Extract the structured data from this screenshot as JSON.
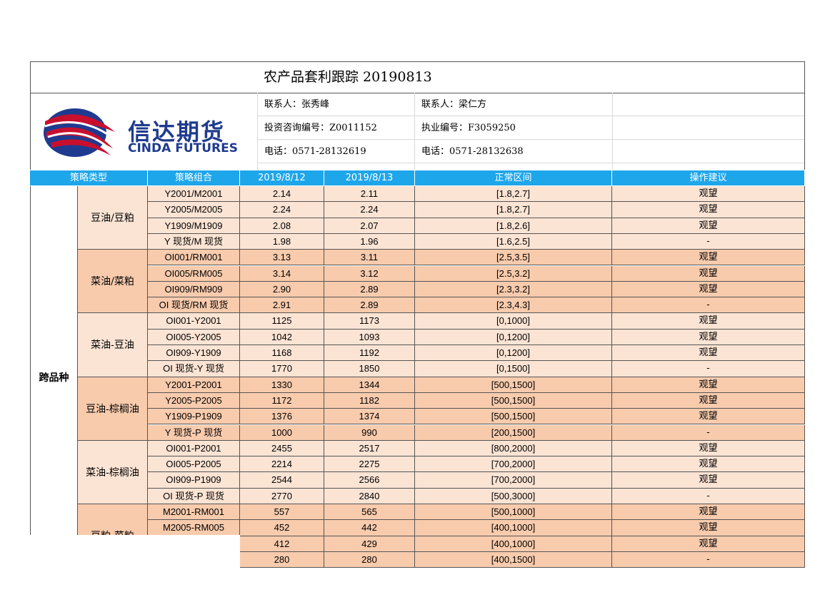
{
  "title": "农产品套利跟踪 20190813",
  "logo": {
    "cn": "信达期货",
    "en": "CINDA FUTURES"
  },
  "contacts": [
    [
      "联系人：张秀峰",
      "联系人：梁仁方"
    ],
    [
      "投资咨询编号：Z0011152",
      "执业编号：F3059250"
    ],
    [
      "电话：0571-28132619",
      "电话：0571-28132638"
    ]
  ],
  "headers": [
    "策略类型",
    "策略组合",
    "2019/8/12",
    "2019/8/13",
    "正常区间",
    "操作建议"
  ],
  "category": "跨品种",
  "groups": [
    {
      "name": "豆油/豆粕",
      "rows": [
        [
          "Y2001/M2001",
          "2.14",
          "2.11",
          "[1.8,2.7]",
          "观望"
        ],
        [
          "Y2005/M2005",
          "2.24",
          "2.24",
          "[1.8,2.7]",
          "观望"
        ],
        [
          "Y1909/M1909",
          "2.08",
          "2.07",
          "[1.8,2.6]",
          "观望"
        ],
        [
          "Y 现货/M 现货",
          "1.98",
          "1.96",
          "[1.6,2.5]",
          "-"
        ]
      ]
    },
    {
      "name": "菜油/菜粕",
      "rows": [
        [
          "OI001/RM001",
          "3.13",
          "3.11",
          "[2.5,3.5]",
          "观望"
        ],
        [
          "OI005/RM005",
          "3.14",
          "3.12",
          "[2.5,3.2]",
          "观望"
        ],
        [
          "OI909/RM909",
          "2.90",
          "2.89",
          "[2.3,3.2]",
          "观望"
        ],
        [
          "OI 现货/RM 现货",
          "2.91",
          "2.89",
          "[2.3,4.3]",
          "-"
        ]
      ]
    },
    {
      "name": "菜油-豆油",
      "rows": [
        [
          "OI001-Y2001",
          "1125",
          "1173",
          "[0,1000]",
          "观望"
        ],
        [
          "OI005-Y2005",
          "1042",
          "1093",
          "[0,1200]",
          "观望"
        ],
        [
          "OI909-Y1909",
          "1168",
          "1192",
          "[0,1200]",
          "观望"
        ],
        [
          "OI 现货-Y 现货",
          "1770",
          "1850",
          "[0,1500]",
          "-"
        ]
      ]
    },
    {
      "name": "豆油-棕榈油",
      "rows": [
        [
          "Y2001-P2001",
          "1330",
          "1344",
          "[500,1500]",
          "观望"
        ],
        [
          "Y2005-P2005",
          "1172",
          "1182",
          "[500,1500]",
          "观望"
        ],
        [
          "Y1909-P1909",
          "1376",
          "1374",
          "[500,1500]",
          "观望"
        ],
        [
          "Y 现货-P 现货",
          "1000",
          "990",
          "[200,1500]",
          "-"
        ]
      ]
    },
    {
      "name": "菜油-棕榈油",
      "rows": [
        [
          "OI001-P2001",
          "2455",
          "2517",
          "[800,2000]",
          "观望"
        ],
        [
          "OI005-P2005",
          "2214",
          "2275",
          "[700,2000]",
          "观望"
        ],
        [
          "OI909-P1909",
          "2544",
          "2566",
          "[700,2000]",
          "观望"
        ],
        [
          "OI 现货-P 现货",
          "2770",
          "2840",
          "[500,3000]",
          "-"
        ]
      ]
    },
    {
      "name": "豆粕-菜粕",
      "rows": [
        [
          "M2001-RM001",
          "557",
          "565",
          "[500,1000]",
          "观望"
        ],
        [
          "M2005-RM005",
          "452",
          "442",
          "[400,1000]",
          "观望"
        ],
        [
          "",
          "412",
          "429",
          "[400,1000]",
          "观望"
        ],
        [
          "",
          "280",
          "280",
          "[400,1500]",
          "-"
        ]
      ]
    }
  ],
  "colors": {
    "header": "#1ea6ea",
    "band_light": "#fce4d4",
    "band_dark": "#f8cbad",
    "logo_red": "#c8102e",
    "logo_blue": "#1f3b8f"
  }
}
